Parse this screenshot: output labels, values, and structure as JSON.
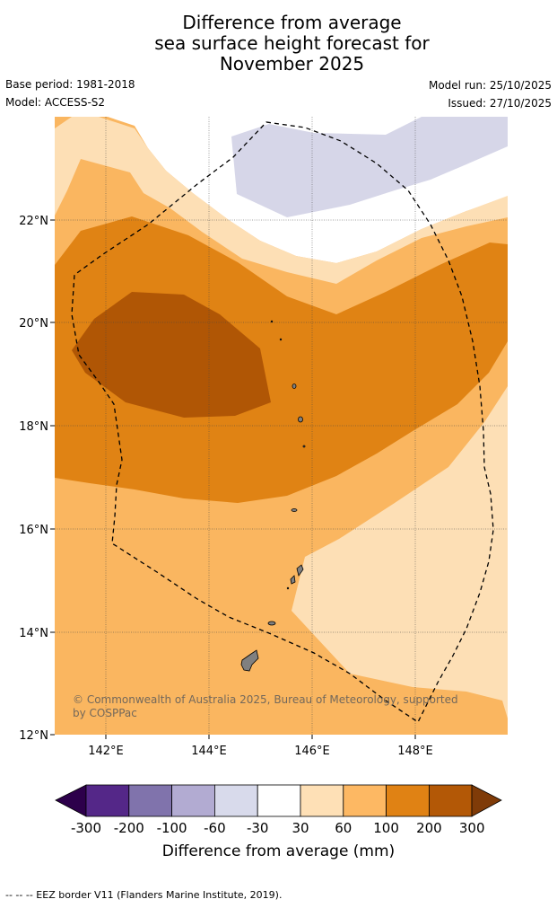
{
  "title": {
    "line1": "Difference from average",
    "line2": "sea surface height forecast for",
    "line3": "November 2025"
  },
  "meta": {
    "base_period": "Base period: 1981-2018",
    "model": "Model: ACCESS-S2",
    "model_run": "Model run: 25/10/2025",
    "issued": "Issued: 27/10/2025"
  },
  "map": {
    "lat_labels": [
      "22°N",
      "20°N",
      "18°N",
      "16°N",
      "14°N",
      "12°N"
    ],
    "lon_labels": [
      "142°E",
      "144°E",
      "146°E",
      "148°E"
    ],
    "credit": "© Commonwealth of Australia 2025, Bureau of Meteorology, supported by COSPPac",
    "colors": {
      "neg30_0": "#d6d6e8",
      "pos30_60": "#fddfb5",
      "pos60_100": "#fab660",
      "pos100_200": "#e08314",
      "pos200_300": "#b05605",
      "land": "#808080"
    }
  },
  "colorbar": {
    "title": "Difference from average (mm)",
    "tick_labels": [
      "-300",
      "-200",
      "-100",
      "-60",
      "-30",
      "30",
      "60",
      "100",
      "200",
      "300"
    ],
    "colors": [
      "#2d004b",
      "#542788",
      "#8073ac",
      "#b2abd2",
      "#d8daeb",
      "#ffffff",
      "#fee0b6",
      "#fdb863",
      "#e08214",
      "#b35806",
      "#7f3b08"
    ]
  },
  "footer": "--  --  -- EEZ border V11 (Flanders Marine Institute, 2019)."
}
